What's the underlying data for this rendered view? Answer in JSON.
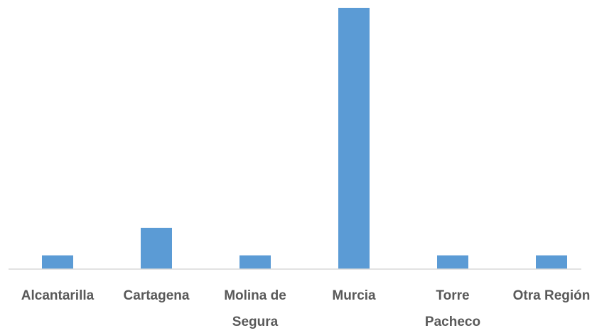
{
  "chart_data": {
    "type": "bar",
    "categories": [
      "Alcantarilla",
      "Cartagena",
      "Molina de Segura",
      "Murcia",
      "Torre Pacheco",
      "Otra Región"
    ],
    "values": [
      1,
      3,
      1,
      19,
      1,
      1
    ],
    "color": "#5b9bd5",
    "ylim": [
      0,
      19
    ]
  }
}
